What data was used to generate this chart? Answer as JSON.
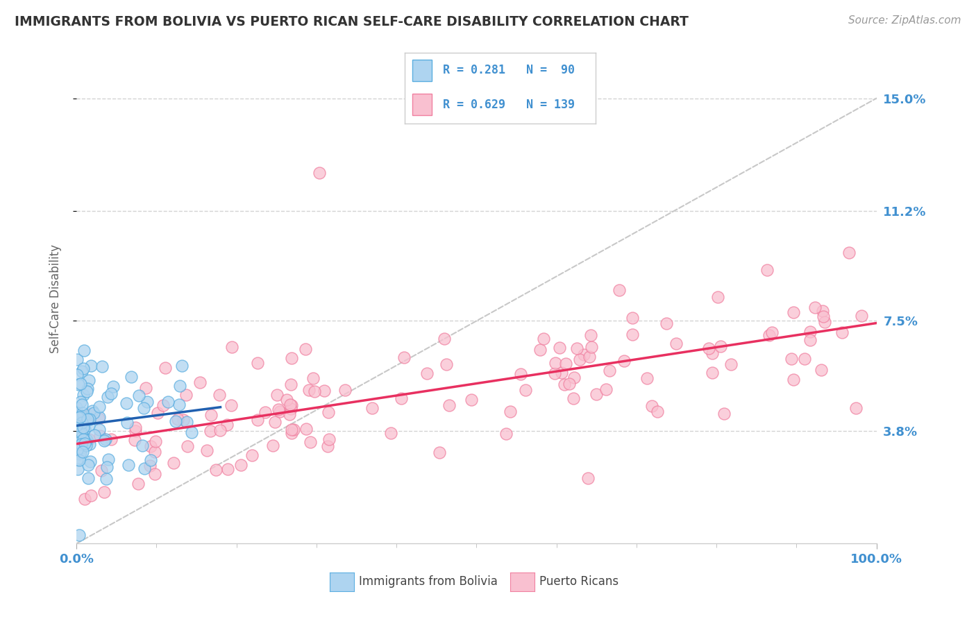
{
  "title": "IMMIGRANTS FROM BOLIVIA VS PUERTO RICAN SELF-CARE DISABILITY CORRELATION CHART",
  "source": "Source: ZipAtlas.com",
  "ylabel": "Self-Care Disability",
  "xlim": [
    0.0,
    100.0
  ],
  "ylim": [
    0.0,
    16.5
  ],
  "ytick_values": [
    3.8,
    7.5,
    11.2,
    15.0
  ],
  "xtick_values": [
    0.0,
    100.0
  ],
  "legend_r1": "R = 0.281",
  "legend_n1": "N =  90",
  "legend_r2": "R = 0.629",
  "legend_n2": "N = 139",
  "legend_label1": "Immigrants from Bolivia",
  "legend_label2": "Puerto Ricans",
  "blue_fill": "#aed4f0",
  "pink_fill": "#f9c0d0",
  "blue_edge": "#5baee0",
  "pink_edge": "#f080a0",
  "regression_blue": "#2060b0",
  "regression_pink": "#e83060",
  "dashed_color": "#c8c8c8",
  "bg_color": "#ffffff",
  "text_color_dark": "#333333",
  "text_color_blue": "#4090d0",
  "text_color_source": "#999999"
}
